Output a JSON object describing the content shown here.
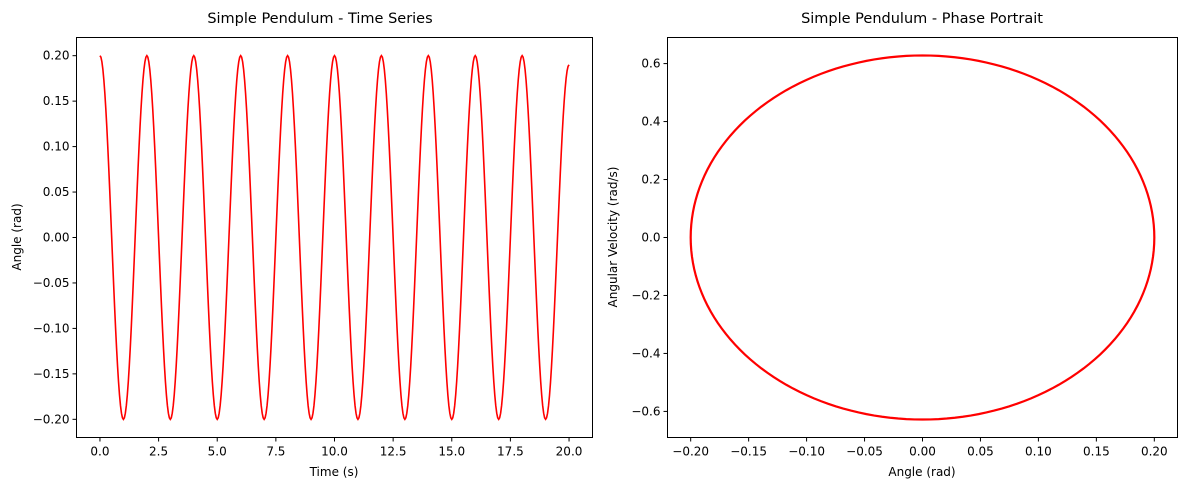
{
  "chart_data": [
    {
      "type": "line",
      "title": "Simple Pendulum - Time Series",
      "xlabel": "Time (s)",
      "ylabel": "Angle (rad)",
      "xlim": [
        -1.0,
        21.0
      ],
      "ylim": [
        -0.22,
        0.22
      ],
      "xticks": [
        0.0,
        2.5,
        5.0,
        7.5,
        10.0,
        12.5,
        15.0,
        17.5,
        20.0
      ],
      "xtick_labels": [
        "0.0",
        "2.5",
        "5.0",
        "7.5",
        "10.0",
        "12.5",
        "15.0",
        "17.5",
        "20.0"
      ],
      "yticks": [
        -0.2,
        -0.15,
        -0.1,
        -0.05,
        0.0,
        0.05,
        0.1,
        0.15,
        0.2
      ],
      "ytick_labels": [
        "−0.20",
        "−0.15",
        "−0.10",
        "−0.05",
        "0.00",
        "0.05",
        "0.10",
        "0.15",
        "0.20"
      ],
      "grid": false,
      "series": [
        {
          "color": "#ff0000",
          "x": [
            0.0,
            1.0,
            2.0,
            3.0,
            4.0,
            5.0,
            6.0,
            7.0,
            8.0,
            9.0,
            10.0,
            11.0,
            12.0,
            13.0,
            14.0,
            15.0,
            16.0,
            17.0,
            18.0,
            19.0,
            20.0
          ],
          "y": [
            0.2,
            -0.2,
            0.2,
            -0.2,
            0.2,
            -0.2,
            0.2,
            -0.2,
            0.2,
            -0.2,
            0.2,
            -0.2,
            0.2,
            -0.2,
            0.2,
            -0.2,
            0.2,
            -0.2,
            0.2,
            -0.2,
            0.19
          ]
        }
      ]
    },
    {
      "type": "line",
      "title": "Simple Pendulum - Phase Portrait",
      "xlabel": "Angle (rad)",
      "ylabel": "Angular Velocity (rad/s)",
      "xlim": [
        -0.22,
        0.22
      ],
      "ylim": [
        -0.69,
        0.69
      ],
      "xticks": [
        -0.2,
        -0.15,
        -0.1,
        -0.05,
        0.0,
        0.05,
        0.1,
        0.15,
        0.2
      ],
      "xtick_labels": [
        "−0.20",
        "−0.15",
        "−0.10",
        "−0.05",
        "0.00",
        "0.05",
        "0.10",
        "0.15",
        "0.20"
      ],
      "yticks": [
        -0.6,
        -0.4,
        -0.2,
        0.0,
        0.2,
        0.4,
        0.6
      ],
      "ytick_labels": [
        "−0.6",
        "−0.4",
        "−0.2",
        "0.0",
        "0.2",
        "0.4",
        "0.6"
      ],
      "grid": false,
      "series": [
        {
          "color": "#ff0000",
          "x": [
            0.2,
            0.19,
            0.162,
            0.118,
            0.062,
            0.0,
            -0.062,
            -0.118,
            -0.162,
            -0.19,
            -0.2,
            -0.19,
            -0.162,
            -0.118,
            -0.062,
            0.0,
            0.062,
            0.118,
            0.162,
            0.19,
            0.2
          ],
          "y": [
            0.0,
            0.194,
            0.369,
            0.508,
            0.597,
            0.628,
            0.597,
            0.508,
            0.369,
            0.194,
            0.0,
            -0.194,
            -0.369,
            -0.508,
            -0.597,
            -0.628,
            -0.597,
            -0.508,
            -0.369,
            -0.194,
            0.0
          ]
        }
      ]
    }
  ]
}
